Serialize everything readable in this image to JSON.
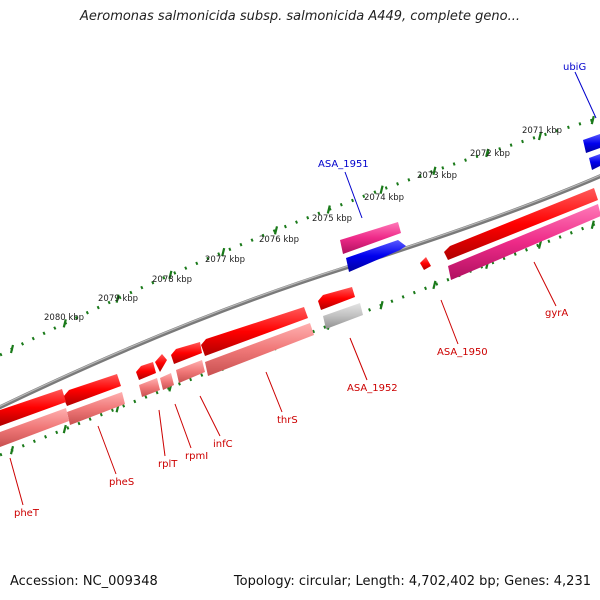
{
  "title": "Aeromonas salmonicida subsp. salmonicida A449, complete geno...",
  "footer": {
    "accession": "Accession: NC_009348",
    "summary": "Topology: circular; Length: 4,702,402 bp; Genes: 4,231"
  },
  "colors": {
    "backbone": "#8a8a8a",
    "tick": "#1a7a1a",
    "label_forward": "#0000cc",
    "label_reverse": "#cc0000"
  },
  "scale_ticks": [
    {
      "label": "2071 kbp"
    },
    {
      "label": "2072 kbp"
    },
    {
      "label": "2073 kbp"
    },
    {
      "label": "2074 kbp"
    },
    {
      "label": "2075 kbp"
    },
    {
      "label": "2076 kbp"
    },
    {
      "label": "2077 kbp"
    },
    {
      "label": "2078 kbp"
    },
    {
      "label": "2079 kbp"
    },
    {
      "label": "2080 kbp"
    }
  ],
  "genes": [
    {
      "label": "ubiG",
      "strand": "forward",
      "color": "blue"
    },
    {
      "label": "ASA_1951",
      "strand": "forward",
      "color": "blue"
    },
    {
      "label": "gyrA",
      "strand": "reverse",
      "color": "red"
    },
    {
      "label": "ASA_1950",
      "strand": "reverse",
      "color": "red"
    },
    {
      "label": "ASA_1952",
      "strand": "reverse",
      "color": "red"
    },
    {
      "label": "thrS",
      "strand": "reverse",
      "color": "red"
    },
    {
      "label": "infC",
      "strand": "reverse",
      "color": "red"
    },
    {
      "label": "rpmI",
      "strand": "reverse",
      "color": "red"
    },
    {
      "label": "rplT",
      "strand": "reverse",
      "color": "red"
    },
    {
      "label": "pheS",
      "strand": "reverse",
      "color": "red"
    },
    {
      "label": "pheT",
      "strand": "reverse",
      "color": "red"
    }
  ]
}
